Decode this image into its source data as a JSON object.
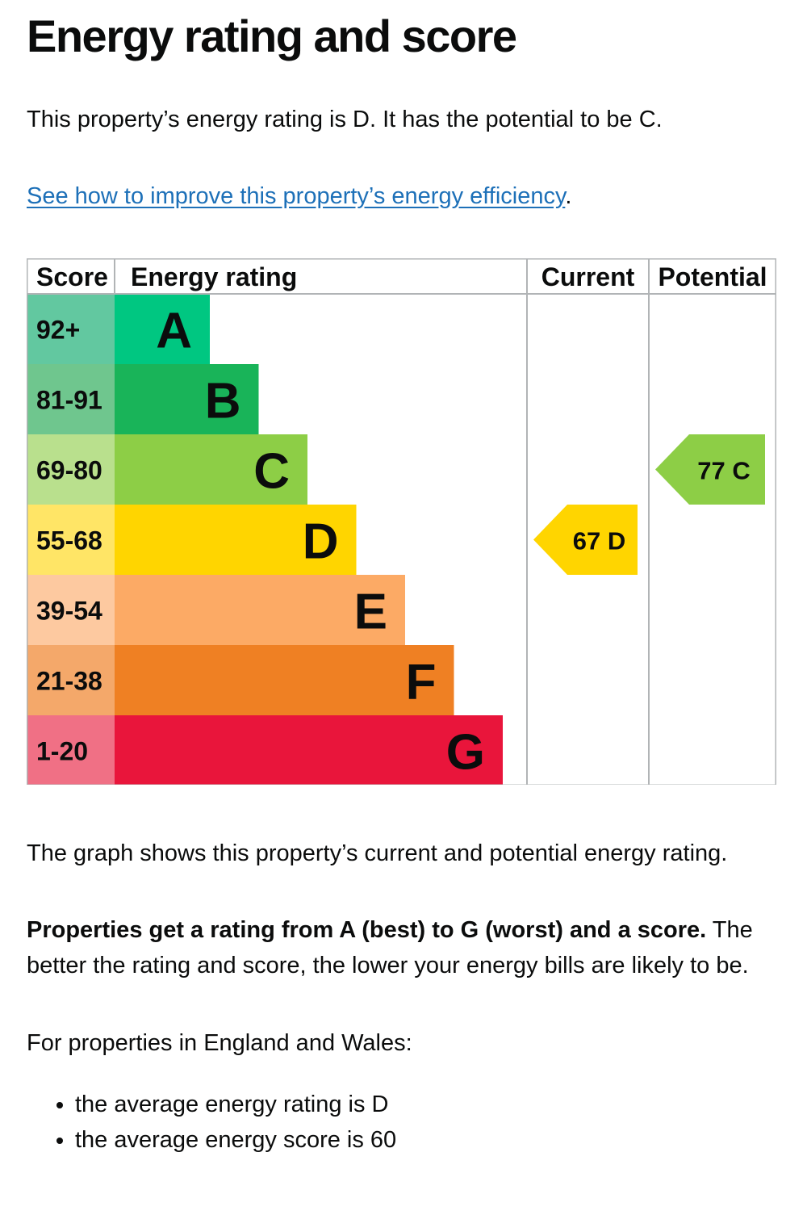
{
  "heading": "Energy rating and score",
  "intro": "This property’s energy rating is D. It has the potential to be C.",
  "improve_link": {
    "text": "See how to improve this property’s energy efficiency",
    "suffix": "."
  },
  "chart_data": {
    "type": "table",
    "headers": {
      "score": "Score",
      "rating": "Energy rating",
      "current": "Current",
      "potential": "Potential"
    },
    "bands": [
      {
        "score": "92+",
        "letter": "A",
        "color": "#00c781",
        "score_color": "#62c8a0"
      },
      {
        "score": "81-91",
        "letter": "B",
        "color": "#19b459",
        "score_color": "#6fc68e"
      },
      {
        "score": "69-80",
        "letter": "C",
        "color": "#8dce46",
        "score_color": "#b9e08d"
      },
      {
        "score": "55-68",
        "letter": "D",
        "color": "#ffd500",
        "score_color": "#ffe566"
      },
      {
        "score": "39-54",
        "letter": "E",
        "color": "#fcaa65",
        "score_color": "#fdc9a0"
      },
      {
        "score": "21-38",
        "letter": "F",
        "color": "#ef8023",
        "score_color": "#f4a86a"
      },
      {
        "score": "1-20",
        "letter": "G",
        "color": "#e9153b",
        "score_color": "#f07085"
      }
    ],
    "current": {
      "score": 67,
      "letter": "D",
      "label": "67 D",
      "color": "#ffd500"
    },
    "potential": {
      "score": 77,
      "letter": "C",
      "label": "77 C",
      "color": "#8dce46"
    }
  },
  "graph_caption": "The graph shows this property’s current and potential energy rating.",
  "rating_explainer": {
    "bold": "Properties get a rating from A (best) to G (worst) and a score.",
    "rest": " The better the rating and score, the lower your energy bills are likely to be."
  },
  "region_intro": "For properties in England and Wales:",
  "averages": [
    "the average energy rating is D",
    "the average energy score is 60"
  ]
}
